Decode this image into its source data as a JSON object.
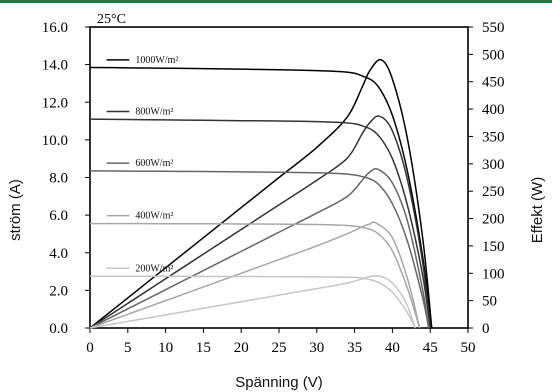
{
  "chart_data": {
    "type": "line",
    "title": "",
    "annotation": "25°C",
    "xlabel": "Spänning (V)",
    "ylabel_left": "ström (A)",
    "ylabel_right": "Effekt (W)",
    "xlim": [
      0,
      50
    ],
    "ylim_left": [
      0,
      16
    ],
    "ylim_right": [
      0,
      550
    ],
    "x_ticks": [
      "0",
      "5",
      "10",
      "15",
      "20",
      "25",
      "30",
      "35",
      "40",
      "45",
      "50"
    ],
    "y_left_ticks": [
      "0.0",
      "2.0",
      "4.0",
      "6.0",
      "8.0",
      "10.0",
      "12.0",
      "14.0",
      "16.0"
    ],
    "y_right_ticks": [
      "0",
      "50",
      "100",
      "150",
      "200",
      "250",
      "300",
      "350",
      "400",
      "450",
      "500",
      "550"
    ],
    "grid": false,
    "legend_position": "left",
    "series": [
      {
        "name": "1000W/m²",
        "color": "#000000",
        "current_curve": {
          "x": [
            0,
            5,
            10,
            15,
            20,
            25,
            30,
            34,
            36,
            38,
            40,
            42,
            44,
            45.2
          ],
          "y": [
            13.85,
            13.83,
            13.81,
            13.79,
            13.76,
            13.73,
            13.68,
            13.6,
            13.4,
            12.9,
            11.3,
            8.3,
            3.8,
            0
          ]
        },
        "power_curve": {
          "x": [
            0,
            5,
            10,
            15,
            20,
            25,
            30,
            34,
            36,
            37,
            38.5,
            40,
            42,
            44,
            45.2
          ],
          "y": [
            0,
            55,
            110,
            165,
            220,
            275,
            330,
            385,
            440,
            470,
            490,
            455,
            345,
            165,
            0
          ]
        }
      },
      {
        "name": "800W/m²",
        "color": "#333333",
        "current_curve": {
          "x": [
            0,
            5,
            10,
            15,
            20,
            25,
            30,
            34,
            36,
            38,
            40,
            42,
            44,
            45.0
          ],
          "y": [
            11.1,
            11.08,
            11.06,
            11.04,
            11.02,
            11.0,
            10.97,
            10.9,
            10.75,
            10.3,
            9.0,
            6.5,
            2.8,
            0
          ]
        },
        "power_curve": {
          "x": [
            0,
            5,
            10,
            15,
            20,
            25,
            30,
            34,
            36,
            37,
            38.3,
            40,
            42,
            44,
            45.0
          ],
          "y": [
            0,
            45,
            90,
            135,
            180,
            225,
            270,
            310,
            355,
            375,
            387,
            360,
            270,
            120,
            0
          ]
        }
      },
      {
        "name": "600W/m²",
        "color": "#666666",
        "current_curve": {
          "x": [
            0,
            5,
            10,
            15,
            20,
            25,
            30,
            34,
            36,
            38,
            40,
            42,
            44,
            44.8
          ],
          "y": [
            8.35,
            8.34,
            8.33,
            8.32,
            8.3,
            8.28,
            8.25,
            8.18,
            8.05,
            7.7,
            6.6,
            4.6,
            1.6,
            0
          ]
        },
        "power_curve": {
          "x": [
            0,
            5,
            10,
            15,
            20,
            25,
            30,
            34,
            36,
            37,
            38.1,
            40,
            42,
            44,
            44.8
          ],
          "y": [
            0,
            35,
            70,
            105,
            140,
            175,
            210,
            240,
            270,
            285,
            290,
            265,
            195,
            70,
            0
          ]
        }
      },
      {
        "name": "400W/m²",
        "color": "#a6a6a6",
        "current_curve": {
          "x": [
            0,
            5,
            10,
            15,
            20,
            25,
            30,
            34,
            36,
            38,
            40,
            42,
            43.6
          ],
          "y": [
            5.55,
            5.55,
            5.54,
            5.54,
            5.53,
            5.52,
            5.5,
            5.45,
            5.35,
            5.05,
            4.1,
            2.1,
            0
          ]
        },
        "power_curve": {
          "x": [
            0,
            5,
            10,
            15,
            20,
            25,
            30,
            34,
            36,
            37,
            37.8,
            40,
            42,
            43.6
          ],
          "y": [
            0,
            25,
            50,
            75,
            100,
            125,
            150,
            172,
            185,
            190,
            192,
            165,
            90,
            0
          ]
        }
      },
      {
        "name": "200W/m²",
        "color": "#c6c6c6",
        "current_curve": {
          "x": [
            0,
            5,
            10,
            15,
            20,
            25,
            30,
            34,
            36,
            38,
            40,
            42,
            43.0
          ],
          "y": [
            2.75,
            2.75,
            2.75,
            2.74,
            2.74,
            2.73,
            2.72,
            2.7,
            2.65,
            2.45,
            1.9,
            0.8,
            0
          ]
        },
        "power_curve": {
          "x": [
            0,
            5,
            10,
            15,
            20,
            25,
            30,
            34,
            36,
            37.5,
            39,
            40.5,
            42,
            43.0
          ],
          "y": [
            0,
            12,
            24,
            36,
            48,
            60,
            72,
            82,
            90,
            95,
            92,
            75,
            40,
            0
          ]
        }
      }
    ]
  }
}
